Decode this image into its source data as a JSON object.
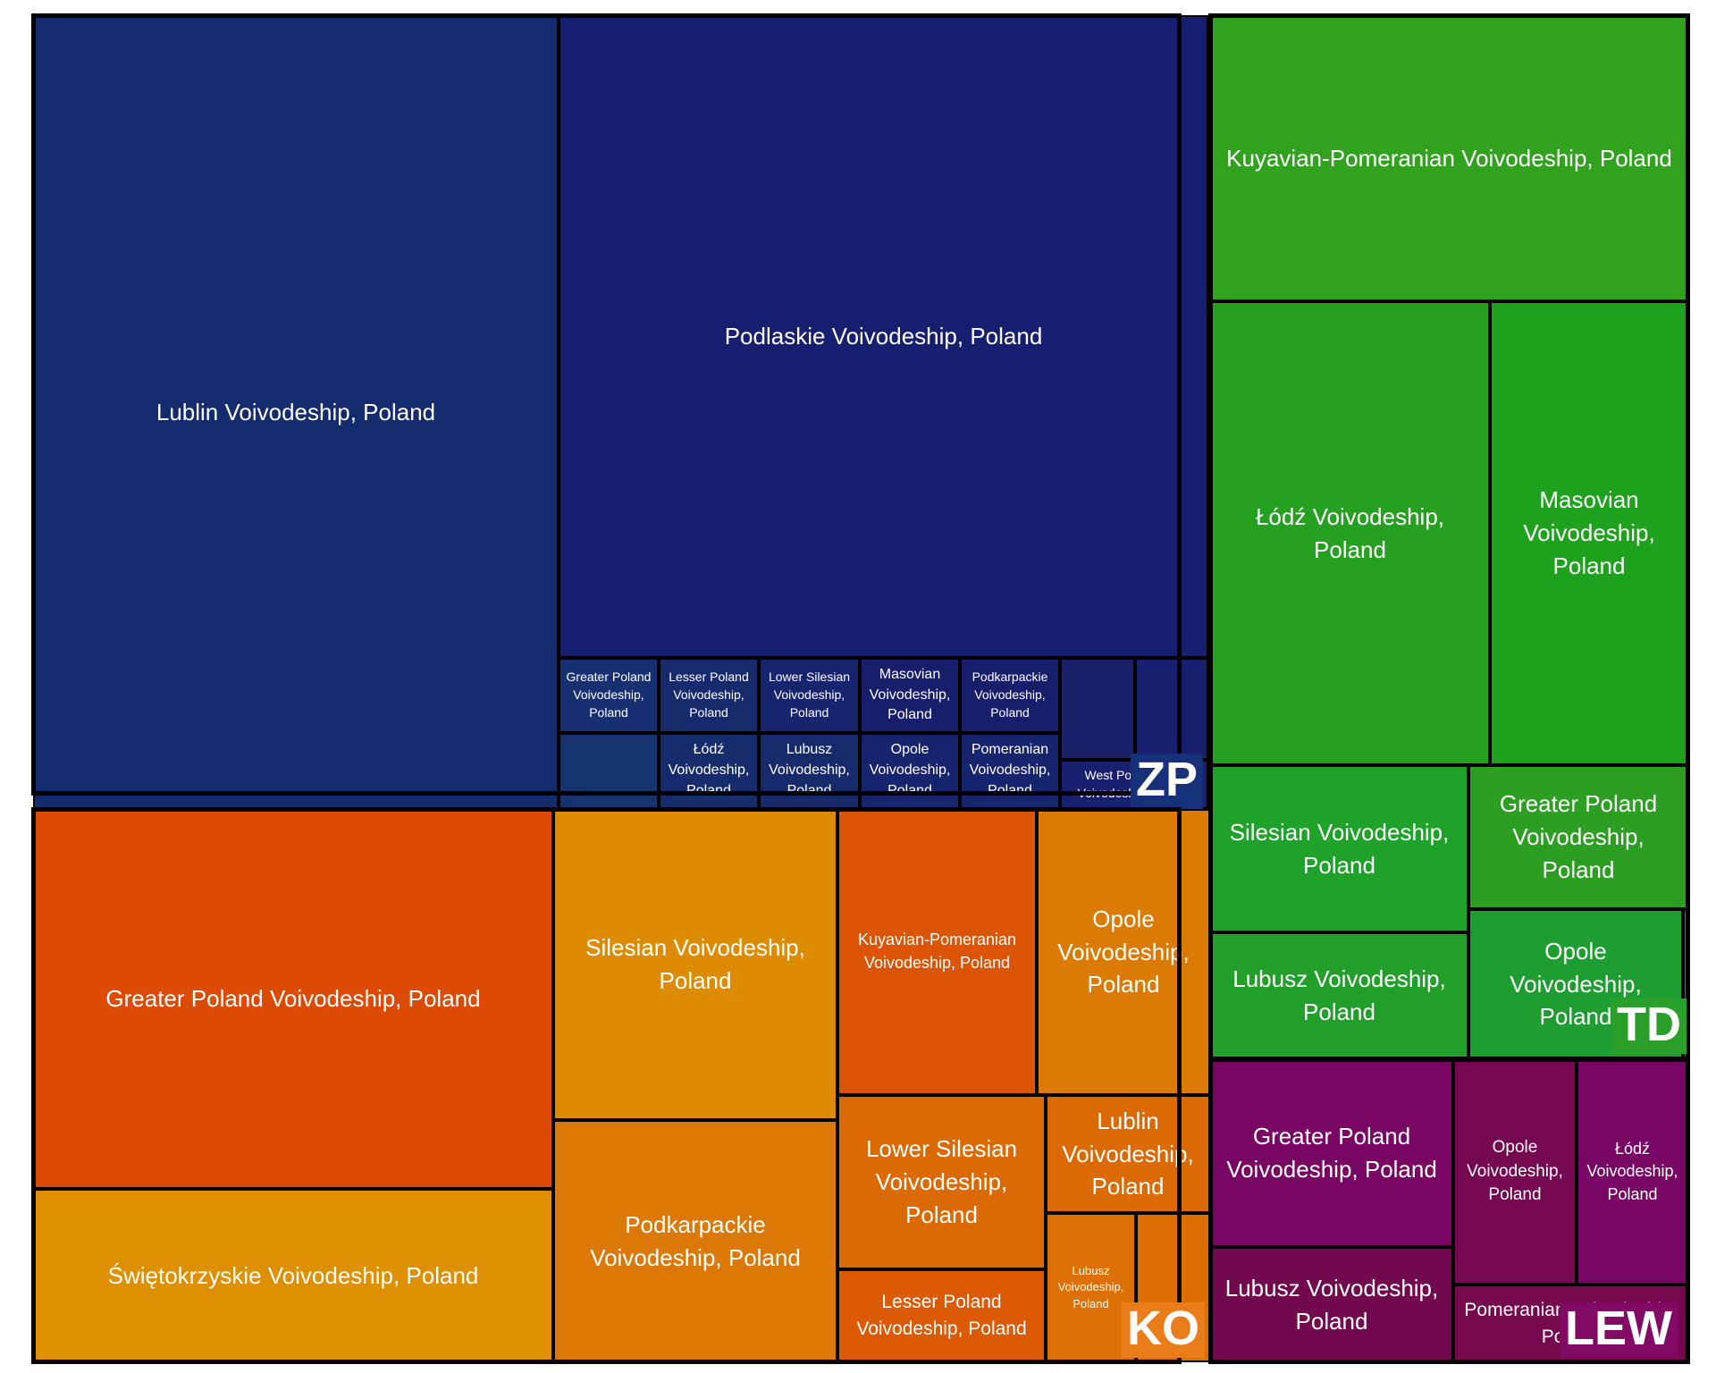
{
  "chart_data": {
    "type": "treemap",
    "groups": [
      {
        "name": "ZP",
        "color": "#16307a",
        "children": [
          {
            "label": "Lublin Voivodeship, Poland",
            "color": "#142c6e"
          },
          {
            "label": "Podlaskie Voivodeship, Poland",
            "color": "#161f70"
          },
          {
            "label": "Greater Poland Voivodeship, Poland",
            "color": "#163072"
          },
          {
            "label": "Lesser Poland Voivodeship, Poland",
            "color": "#162a6c"
          },
          {
            "label": "Lower Silesian Voivodeship, Poland",
            "color": "#17246e"
          },
          {
            "label": "Masovian Voivodeship, Poland",
            "color": "#171e6b"
          },
          {
            "label": "Podkarpackie Voivodeship, Poland",
            "color": "#171e6b"
          },
          {
            "label": "",
            "color": "#1a2068"
          },
          {
            "label": "",
            "color": "#1a2070"
          },
          {
            "label": "",
            "color": "#16326f"
          },
          {
            "label": "Łódź Voivodeship, Poland",
            "color": "#162c6c"
          },
          {
            "label": "Lubusz Voivodeship, Poland",
            "color": "#162a6c"
          },
          {
            "label": "Opole Voivodeship, Poland",
            "color": "#17246e"
          },
          {
            "label": "Pomeranian Voivodeship, Poland",
            "color": "#17246e"
          },
          {
            "label": "West Pomeranian Voivodeship, Poland",
            "color": "#1a2070"
          }
        ]
      },
      {
        "name": "KO",
        "color": "#e07a10",
        "children": [
          {
            "label": "Greater Poland Voivodeship, Poland",
            "color": "#dc4a04"
          },
          {
            "label": "Świętokrzyskie Voivodeship, Poland",
            "color": "#de9002"
          },
          {
            "label": "Silesian Voivodeship, Poland",
            "color": "#dc8b02"
          },
          {
            "label": "Podkarpackie Voivodeship, Poland",
            "color": "#dc7806"
          },
          {
            "label": "Kuyavian-Pomeranian Voivodeship, Poland",
            "color": "#dc5506"
          },
          {
            "label": "Opole Voivodeship, Poland",
            "color": "#dc7b04"
          },
          {
            "label": "Lower Silesian Voivodeship, Poland",
            "color": "#dc6a04"
          },
          {
            "label": "Lesser Poland Voivodeship, Poland",
            "color": "#dc5a04"
          },
          {
            "label": "Lublin Voivodeship, Poland",
            "color": "#dc6a04"
          },
          {
            "label": "Lubusz Voivodeship, Poland",
            "color": "#dc7004"
          },
          {
            "label": "",
            "color": "#dc6e04"
          }
        ]
      },
      {
        "name": "TD",
        "color": "#2aa02a",
        "children": [
          {
            "label": "Kuyavian-Pomeranian Voivodeship, Poland",
            "color": "#30a21e"
          },
          {
            "label": "Łódź Voivodeship, Poland",
            "color": "#26a020"
          },
          {
            "label": "Masovian Voivodeship, Poland",
            "color": "#1ea21e"
          },
          {
            "label": "Silesian Voivodeship, Poland",
            "color": "#1ea22a"
          },
          {
            "label": "Greater Poland Voivodeship, Poland",
            "color": "#2c9e22"
          },
          {
            "label": "Lubusz Voivodeship, Poland",
            "color": "#229e2a"
          },
          {
            "label": "Opole Voivodeship, Poland",
            "color": "#1e9e30"
          },
          {
            "label": "",
            "color": "#1e9e30"
          }
        ]
      },
      {
        "name": "LEW",
        "color": "#800a64",
        "children": [
          {
            "label": "Greater Poland Voivodeship, Poland",
            "color": "#7a0664"
          },
          {
            "label": "Lubusz Voivodeship, Poland",
            "color": "#72084e"
          },
          {
            "label": "Opole Voivodeship, Poland",
            "color": "#760852"
          },
          {
            "label": "Łódź Voivodeship, Poland",
            "color": "#780664"
          },
          {
            "label": "Pomeranian Voivodeship, Poland",
            "color": "#76084e"
          }
        ]
      }
    ]
  }
}
